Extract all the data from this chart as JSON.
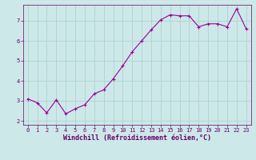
{
  "x": [
    0,
    1,
    2,
    3,
    4,
    5,
    6,
    7,
    8,
    9,
    10,
    11,
    12,
    13,
    14,
    15,
    16,
    17,
    18,
    19,
    20,
    21,
    22,
    23
  ],
  "y": [
    3.1,
    2.9,
    2.4,
    3.05,
    2.35,
    2.6,
    2.8,
    3.35,
    3.55,
    4.1,
    4.75,
    5.45,
    6.0,
    6.55,
    7.05,
    7.3,
    7.25,
    7.25,
    6.7,
    6.85,
    6.85,
    6.7,
    7.6,
    6.6
  ],
  "line_color": "#990099",
  "marker": "+",
  "marker_size": 3,
  "bg_color": "#cce8e8",
  "grid_color": "#aacece",
  "xlabel": "Windchill (Refroidissement éolien,°C)",
  "xlim": [
    -0.5,
    23.5
  ],
  "ylim": [
    1.8,
    7.8
  ],
  "yticks": [
    2,
    3,
    4,
    5,
    6,
    7
  ],
  "xticks": [
    0,
    1,
    2,
    3,
    4,
    5,
    6,
    7,
    8,
    9,
    10,
    11,
    12,
    13,
    14,
    15,
    16,
    17,
    18,
    19,
    20,
    21,
    22,
    23
  ],
  "tick_label_size": 5.0,
  "xlabel_size": 6.0,
  "axis_color": "#660066",
  "linewidth": 0.8,
  "markeredgewidth": 0.8
}
